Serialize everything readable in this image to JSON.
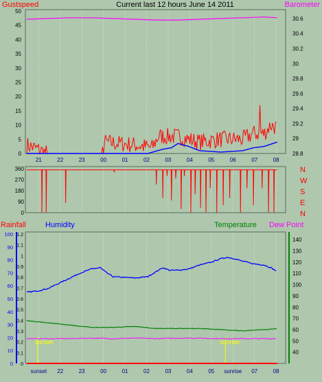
{
  "colors": {
    "background": "#aec7ad",
    "plot_border": "#5a6b5a",
    "grid": "#ffffff",
    "gust": "#ff0000",
    "wind": "#0000ff",
    "barometer": "#ff00ff",
    "rainfall": "#ff0000",
    "humidity": "#0000ff",
    "temperature": "#008000",
    "dewpoint": "#ff00ff",
    "sun_marker": "#ffff00",
    "navy_text": "#000080"
  },
  "chart_data": [
    {
      "type": "line",
      "title": "Current last 12 hours June 14 2011",
      "left_label": "Gustspeed",
      "right_label": "Barometer",
      "x_ticks": [
        "21",
        "22",
        "23",
        "00",
        "01",
        "02",
        "03",
        "04",
        "05",
        "06",
        "07",
        "08"
      ],
      "y_left_ticks": [
        "0",
        "5",
        "10",
        "15",
        "20",
        "25",
        "30",
        "35",
        "40",
        "45",
        "50"
      ],
      "y_right_ticks": [
        "28.8",
        "29",
        "29.2",
        "29.4",
        "29.6",
        "29.8",
        "30",
        "30.2",
        "30.4",
        "30.6"
      ],
      "ylim_left": [
        0,
        50
      ],
      "ylim_right": [
        28.8,
        30.7
      ],
      "barometer": [
        [
          0,
          30.59
        ],
        [
          1,
          30.6
        ],
        [
          2,
          30.61
        ],
        [
          3,
          30.61
        ],
        [
          4,
          30.6
        ],
        [
          5,
          30.59
        ],
        [
          6,
          30.58
        ],
        [
          7,
          30.58
        ],
        [
          8,
          30.59
        ],
        [
          9,
          30.6
        ],
        [
          10,
          30.61
        ],
        [
          11,
          30.62
        ],
        [
          11.6,
          30.61
        ]
      ],
      "gust_base": [
        [
          0,
          3
        ],
        [
          1,
          0
        ],
        [
          1.5,
          0
        ],
        [
          3.5,
          0
        ],
        [
          3.6,
          4
        ],
        [
          5,
          3
        ],
        [
          5.8,
          2
        ],
        [
          6.1,
          6
        ],
        [
          7,
          6
        ],
        [
          8,
          4
        ],
        [
          9,
          5
        ],
        [
          10,
          5
        ],
        [
          10.5,
          7
        ],
        [
          11,
          7
        ],
        [
          11.3,
          10
        ],
        [
          11.6,
          9
        ]
      ],
      "gust_noise": 3,
      "gust_peak": [
        10.8,
        17
      ],
      "windspeed": [
        [
          0,
          0
        ],
        [
          5.6,
          0
        ],
        [
          6.3,
          1.5
        ],
        [
          6.7,
          2
        ],
        [
          7,
          3.5
        ],
        [
          7.5,
          2.5
        ],
        [
          8,
          1
        ],
        [
          9,
          0.5
        ],
        [
          10,
          1
        ],
        [
          10.5,
          2
        ],
        [
          11,
          2.5
        ],
        [
          11.6,
          4
        ]
      ]
    },
    {
      "type": "line",
      "label_directions": [
        "N",
        "W",
        "S",
        "E",
        "N"
      ],
      "y_ticks": [
        "0",
        "90",
        "180",
        "270",
        "360"
      ],
      "ylim": [
        0,
        360
      ],
      "direction_base": 350,
      "direction_drops": [
        [
          0.7,
          0
        ],
        [
          0.9,
          0
        ],
        [
          1.8,
          80
        ],
        [
          4.05,
          330
        ],
        [
          6,
          230
        ],
        [
          6.3,
          120
        ],
        [
          6.5,
          300
        ],
        [
          6.7,
          100
        ],
        [
          6.9,
          280
        ],
        [
          7.15,
          30
        ],
        [
          7.3,
          300
        ],
        [
          7.6,
          0
        ],
        [
          7.8,
          150
        ],
        [
          8.05,
          40
        ],
        [
          8.3,
          0
        ],
        [
          8.5,
          200
        ],
        [
          8.8,
          0
        ],
        [
          9.1,
          60
        ],
        [
          9.4,
          120
        ],
        [
          9.9,
          0
        ],
        [
          10.2,
          200
        ],
        [
          10.5,
          60
        ],
        [
          10.9,
          200
        ],
        [
          11.2,
          0
        ],
        [
          11.45,
          0
        ]
      ]
    },
    {
      "type": "line",
      "labels": {
        "rainfall": "Rainfall",
        "humidity": "Humidity",
        "temperature": "Temperature",
        "dewpoint": "Dew Point"
      },
      "y_left_humidity_ticks": [
        "0",
        "10",
        "20",
        "30",
        "40",
        "50",
        "60",
        "70",
        "80",
        "90",
        "100"
      ],
      "y_left_rain_ticks": [
        "0",
        "0.1",
        "0.2",
        "0.3",
        "0.4",
        "0.5",
        "0.6",
        "0.7",
        "0.8",
        "0.9",
        "1",
        "1.1",
        "1.2"
      ],
      "y_right_ticks": [
        "40",
        "50",
        "60",
        "70",
        "80",
        "90",
        "100",
        "110",
        "120",
        "130",
        "140"
      ],
      "x_ticks": [
        "sunset",
        "22",
        "23",
        "00",
        "01",
        "02",
        "03",
        "04",
        "05",
        "sunrise",
        "07",
        "08"
      ],
      "humidity_ylim": [
        0,
        100
      ],
      "rain_ylim": [
        0,
        1.2
      ],
      "temp_ylim": [
        30,
        145
      ],
      "sunset_label": "sunset",
      "sunrise_label": "sunrise",
      "sun_markers": [
        0.5,
        9.2
      ],
      "humidity": [
        [
          0,
          55
        ],
        [
          0.5,
          56
        ],
        [
          1,
          58
        ],
        [
          1.5,
          62
        ],
        [
          2,
          66
        ],
        [
          2.5,
          70
        ],
        [
          3,
          73
        ],
        [
          3.4,
          74
        ],
        [
          3.7,
          70
        ],
        [
          4,
          67
        ],
        [
          5,
          66
        ],
        [
          5.6,
          67
        ],
        [
          6,
          71
        ],
        [
          6.3,
          74
        ],
        [
          6.6,
          72
        ],
        [
          7,
          72
        ],
        [
          7.5,
          73
        ],
        [
          8,
          76
        ],
        [
          8.5,
          78
        ],
        [
          9,
          81
        ],
        [
          9.3,
          82
        ],
        [
          9.6,
          81
        ],
        [
          10,
          79
        ],
        [
          10.5,
          77
        ],
        [
          11,
          76
        ],
        [
          11.3,
          74
        ],
        [
          11.6,
          71
        ]
      ],
      "temperature": [
        [
          0,
          68
        ],
        [
          1,
          66
        ],
        [
          2,
          64
        ],
        [
          3,
          62
        ],
        [
          4,
          62
        ],
        [
          5,
          63
        ],
        [
          6,
          61
        ],
        [
          7,
          61
        ],
        [
          8,
          61
        ],
        [
          9,
          60
        ],
        [
          10,
          59
        ],
        [
          11,
          60
        ],
        [
          11.6,
          61
        ]
      ],
      "dewpoint": [
        [
          0,
          52
        ],
        [
          1,
          52
        ],
        [
          2,
          52
        ],
        [
          3,
          52.5
        ],
        [
          4,
          52
        ],
        [
          5,
          52.5
        ],
        [
          6,
          52
        ],
        [
          7,
          52.5
        ],
        [
          8,
          52.5
        ],
        [
          9,
          52
        ],
        [
          10,
          52
        ],
        [
          11,
          52
        ],
        [
          11.6,
          52
        ]
      ],
      "rainfall": [
        [
          0,
          0
        ],
        [
          11.6,
          0
        ]
      ]
    }
  ]
}
